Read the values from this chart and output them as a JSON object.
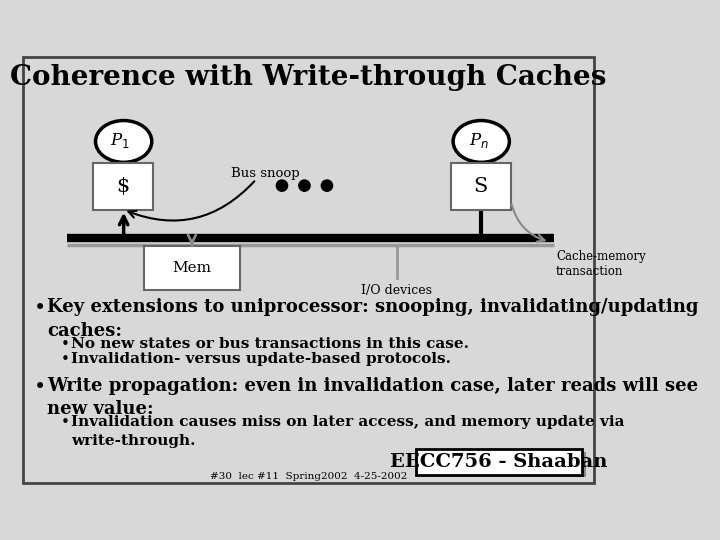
{
  "title": "Coherence with Write-through Caches",
  "background_color": "#d8d8d8",
  "title_fontsize": 20,
  "body_fontsize": 13,
  "small_fontsize": 11,
  "sub_bullets_1": [
    "No new states or bus transactions in this case.",
    "Invalidation- versus update-based protocols."
  ],
  "sub_bullet_2": "Invalidation causes miss on later access, and memory update via\nwrite-through.",
  "footer_box": "EECC756 - Shaaban",
  "footer_small": "#30  lec #11  Spring2002  4-25-2002"
}
